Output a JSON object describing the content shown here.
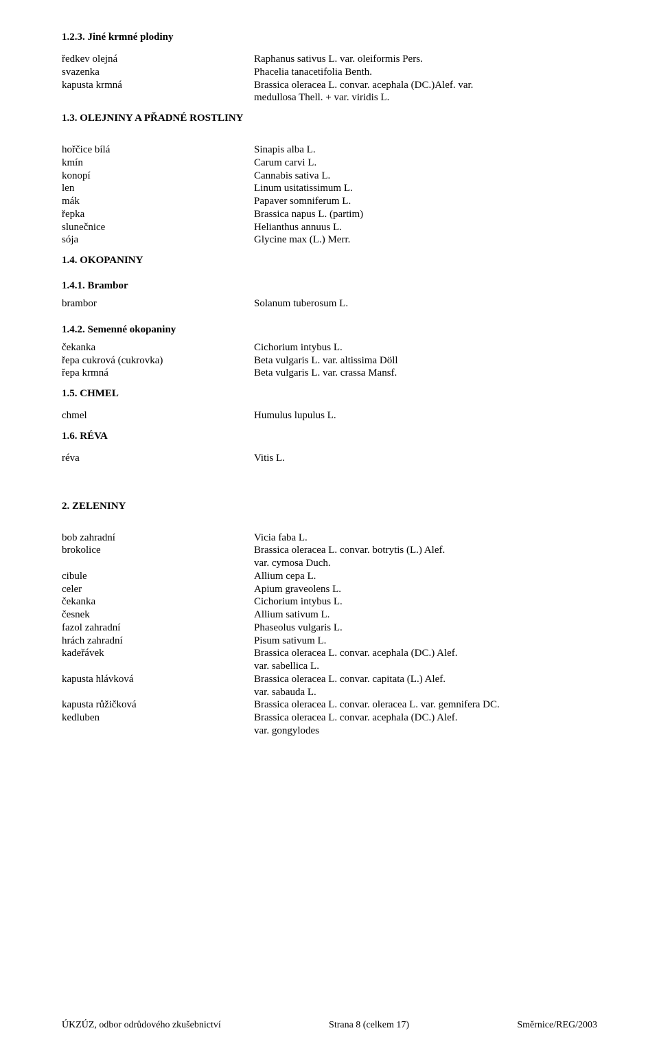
{
  "s123": {
    "heading": "1.2.3. Jiné krmné plodiny",
    "rows": [
      {
        "l": "ředkev olejná",
        "r": "Raphanus sativus L. var. oleiformis Pers."
      },
      {
        "l": "svazenka",
        "r": "Phacelia tanacetifolia Benth."
      },
      {
        "l": "kapusta krmná",
        "r": "Brassica oleracea L. convar. acephala (DC.)Alef. var."
      },
      {
        "l": "",
        "r": "medullosa Thell. + var. viridis L."
      }
    ]
  },
  "s13": {
    "heading": "1.3. OLEJNINY A PŘADNÉ ROSTLINY",
    "rows": [
      {
        "l": "hořčice bílá",
        "r": "Sinapis alba L."
      },
      {
        "l": "kmín",
        "r": "Carum carvi L."
      },
      {
        "l": "konopí",
        "r": "Cannabis sativa L."
      },
      {
        "l": "len",
        "r": "Linum usitatissimum L."
      },
      {
        "l": "mák",
        "r": "Papaver somniferum L."
      },
      {
        "l": "řepka",
        "r": "Brassica napus L. (partim)"
      },
      {
        "l": "slunečnice",
        "r": "Helianthus annuus L."
      },
      {
        "l": "sója",
        "r": "Glycine max (L.) Merr."
      }
    ]
  },
  "s14": {
    "heading": "1.4. OKOPANINY"
  },
  "s141": {
    "heading": "1.4.1. Brambor",
    "rows": [
      {
        "l": "brambor",
        "r": "Solanum tuberosum L."
      }
    ]
  },
  "s142": {
    "heading": "1.4.2. Semenné okopaniny",
    "rows": [
      {
        "l": "čekanka",
        "r": "Cichorium intybus L."
      },
      {
        "l": "řepa cukrová (cukrovka)",
        "r": "Beta vulgaris L. var. altissima Döll"
      },
      {
        "l": "řepa krmná",
        "r": "Beta vulgaris L. var. crassa Mansf."
      }
    ]
  },
  "s15": {
    "heading": "1.5. CHMEL",
    "rows": [
      {
        "l": "chmel",
        "r": "Humulus lupulus L."
      }
    ]
  },
  "s16": {
    "heading": "1.6. RÉVA",
    "rows": [
      {
        "l": "réva",
        "r": "Vitis L."
      }
    ]
  },
  "s2": {
    "heading": "2. ZELENINY",
    "rows": [
      {
        "l": "bob zahradní",
        "r": "Vicia faba L."
      },
      {
        "l": "brokolice",
        "r": "Brassica oleracea L. convar. botrytis (L.) Alef."
      },
      {
        "l": "",
        "r": "var. cymosa Duch."
      },
      {
        "l": "cibule",
        "r": "Allium cepa L."
      },
      {
        "l": "celer",
        "r": "Apium graveolens L."
      },
      {
        "l": "čekanka",
        "r": "Cichorium intybus L."
      },
      {
        "l": "česnek",
        "r": "Allium sativum L."
      },
      {
        "l": "fazol zahradní",
        "r": "Phaseolus vulgaris L."
      },
      {
        "l": "hrách zahradní",
        "r": "Pisum sativum L."
      },
      {
        "l": "kadeřávek",
        "r": "Brassica oleracea L. convar. acephala (DC.) Alef."
      },
      {
        "l": "",
        "r": "var. sabellica L."
      },
      {
        "l": "kapusta hlávková",
        "r": "Brassica oleracea L. convar. capitata (L.) Alef."
      },
      {
        "l": "",
        "r": "var. sabauda L."
      },
      {
        "l": "kapusta růžičková",
        "r": "Brassica oleracea L. convar. oleracea L. var. gemnifera DC."
      },
      {
        "l": "kedluben",
        "r": "Brassica oleracea L. convar. acephala (DC.) Alef."
      },
      {
        "l": "",
        "r": "var. gongylodes"
      }
    ]
  },
  "footer": {
    "left": "ÚKZÚZ, odbor odrůdového zkušebnictví",
    "center": "Strana 8 (celkem 17)",
    "right": "Směrnice/REG/2003"
  }
}
